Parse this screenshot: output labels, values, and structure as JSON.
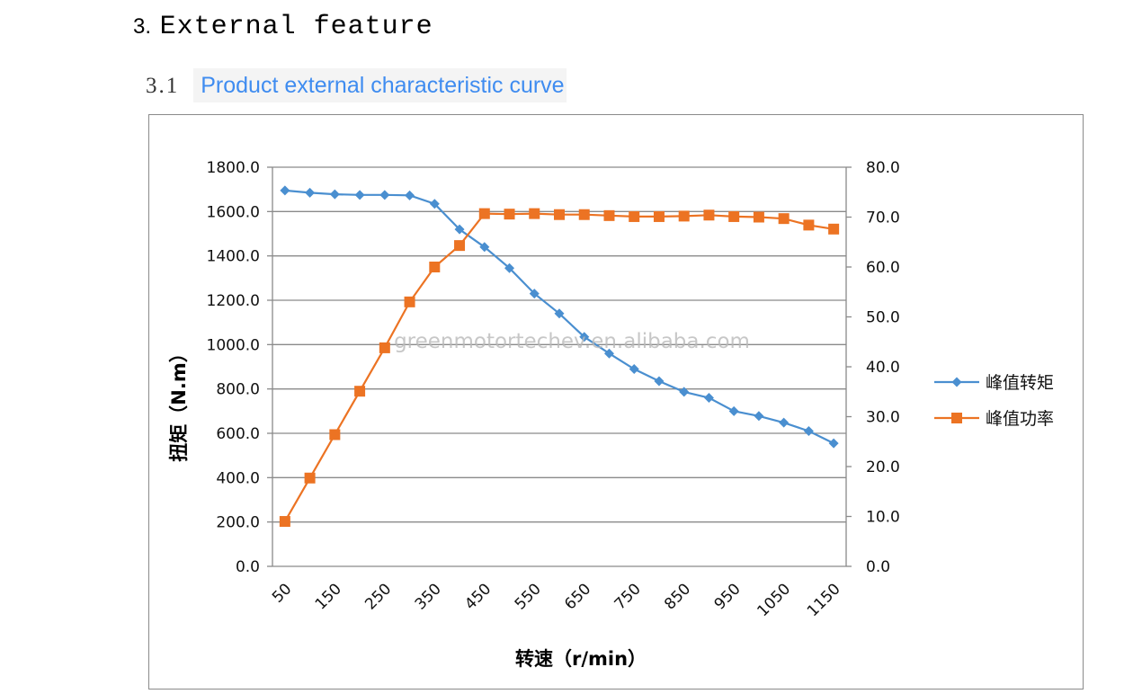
{
  "heading": {
    "number": "3.",
    "title": "External feature"
  },
  "subheading": {
    "number": "3.1",
    "title": "Product external characteristic curve"
  },
  "watermark": "greenmotortechev.en.alibaba.com",
  "colors": {
    "torque": "#4a8fd0",
    "power": "#ec7323",
    "grid": "#8a8a8a",
    "link": "#3f8cf0"
  },
  "chart_data": {
    "type": "line",
    "ylabel": "扭矩（N.m）",
    "xlabel": "转速（r/min）",
    "x": [
      50,
      100,
      150,
      200,
      250,
      300,
      350,
      400,
      450,
      500,
      550,
      600,
      650,
      700,
      750,
      800,
      850,
      900,
      950,
      1000,
      1050,
      1100,
      1150
    ],
    "x_tick_labels": [
      "50",
      "150",
      "250",
      "350",
      "450",
      "550",
      "650",
      "750",
      "850",
      "950",
      "1050",
      "1150"
    ],
    "y_left": {
      "ylim": [
        0,
        1800
      ],
      "ticks": [
        "0.0",
        "200.0",
        "400.0",
        "600.0",
        "800.0",
        "1000.0",
        "1200.0",
        "1400.0",
        "1600.0",
        "1800.0"
      ]
    },
    "y_right": {
      "ylim": [
        0,
        80
      ],
      "ticks": [
        "0.0",
        "10.0",
        "20.0",
        "30.0",
        "40.0",
        "50.0",
        "60.0",
        "70.0",
        "80.0"
      ]
    },
    "grid": true,
    "legend_position": "right",
    "series": [
      {
        "name": "峰值转矩",
        "axis": "left",
        "marker": "diamond",
        "values": [
          1695,
          1685,
          1678,
          1675,
          1675,
          1673,
          1635,
          1520,
          1440,
          1345,
          1230,
          1140,
          1035,
          960,
          890,
          835,
          787,
          760,
          700,
          678,
          648,
          610,
          555
        ]
      },
      {
        "name": "峰值功率",
        "axis": "right",
        "marker": "square",
        "values": [
          9,
          17.7,
          26.4,
          35.1,
          43.8,
          53,
          60,
          64.3,
          70.7,
          70.6,
          70.7,
          70.5,
          70.5,
          70.3,
          70.1,
          70.1,
          70.2,
          70.4,
          70.1,
          70,
          69.7,
          68.4,
          67.6
        ]
      }
    ]
  }
}
